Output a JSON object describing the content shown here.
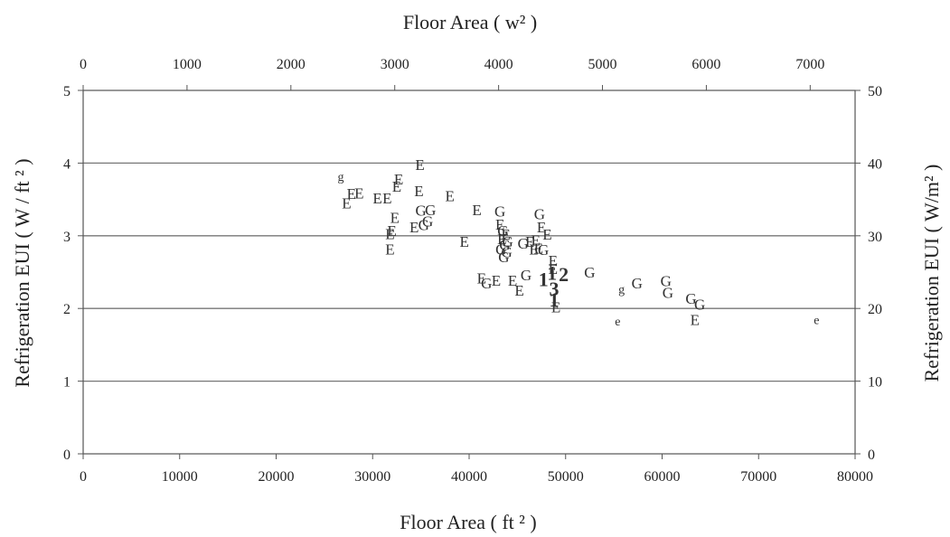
{
  "chart_data": {
    "type": "scatter",
    "xlabel_bottom": "Floor Area ( ft ² )",
    "xlabel_top": "Floor Area ( w² )",
    "ylabel_left": "Refrigeration EUI ( W / ft ² )",
    "ylabel_right": "Refrigeration EUI ( W/m² )",
    "xlim_bottom": [
      0,
      80000
    ],
    "ylim_left": [
      0,
      5
    ],
    "x_ticks_bottom": [
      "0",
      "10000",
      "20000",
      "30000",
      "40000",
      "50000",
      "60000",
      "70000",
      "80000"
    ],
    "y_ticks_left": [
      "0",
      "1",
      "2",
      "3",
      "4",
      "5"
    ],
    "x_ticks_top": [
      "0",
      "1000",
      "2000",
      "3000",
      "4000",
      "5000",
      "6000",
      "7000"
    ],
    "y_ticks_right": [
      "0",
      "10",
      "20",
      "30",
      "40",
      "50"
    ],
    "grid": "horizontal",
    "points": [
      {
        "x": 26700,
        "y": 3.83,
        "label": "g"
      },
      {
        "x": 27300,
        "y": 3.45,
        "label": "E"
      },
      {
        "x": 27800,
        "y": 3.58,
        "label": "E"
      },
      {
        "x": 28600,
        "y": 3.59,
        "label": "E"
      },
      {
        "x": 30500,
        "y": 3.52,
        "label": "E"
      },
      {
        "x": 31500,
        "y": 3.52,
        "label": "E"
      },
      {
        "x": 31800,
        "y": 3.03,
        "label": "E"
      },
      {
        "x": 31800,
        "y": 2.82,
        "label": "E"
      },
      {
        "x": 32000,
        "y": 3.07,
        "label": "E"
      },
      {
        "x": 32300,
        "y": 3.25,
        "label": "E"
      },
      {
        "x": 32500,
        "y": 3.68,
        "label": "E"
      },
      {
        "x": 32700,
        "y": 3.78,
        "label": "E"
      },
      {
        "x": 34300,
        "y": 3.12,
        "label": "E"
      },
      {
        "x": 34800,
        "y": 3.62,
        "label": "E"
      },
      {
        "x": 34900,
        "y": 3.98,
        "label": "E"
      },
      {
        "x": 35000,
        "y": 3.35,
        "label": "G"
      },
      {
        "x": 35300,
        "y": 3.15,
        "label": "G"
      },
      {
        "x": 35700,
        "y": 3.2,
        "label": "G"
      },
      {
        "x": 36000,
        "y": 3.36,
        "label": "G"
      },
      {
        "x": 38000,
        "y": 3.55,
        "label": "E"
      },
      {
        "x": 39500,
        "y": 2.92,
        "label": "E"
      },
      {
        "x": 40800,
        "y": 3.36,
        "label": "E"
      },
      {
        "x": 41300,
        "y": 2.42,
        "label": "E"
      },
      {
        "x": 41800,
        "y": 2.35,
        "label": "G"
      },
      {
        "x": 42800,
        "y": 2.39,
        "label": "E"
      },
      {
        "x": 43200,
        "y": 3.34,
        "label": "G"
      },
      {
        "x": 43200,
        "y": 3.16,
        "label": "E"
      },
      {
        "x": 43300,
        "y": 2.82,
        "label": "G"
      },
      {
        "x": 43400,
        "y": 2.96,
        "label": "E"
      },
      {
        "x": 43500,
        "y": 3.07,
        "label": "G"
      },
      {
        "x": 43600,
        "y": 2.71,
        "label": "G"
      },
      {
        "x": 43700,
        "y": 2.88,
        "label": "G"
      },
      {
        "x": 43800,
        "y": 3.02,
        "label": "E"
      },
      {
        "x": 43900,
        "y": 2.78,
        "label": "G"
      },
      {
        "x": 44000,
        "y": 2.92,
        "label": "G"
      },
      {
        "x": 44500,
        "y": 2.39,
        "label": "E"
      },
      {
        "x": 45200,
        "y": 2.25,
        "label": "E"
      },
      {
        "x": 45600,
        "y": 2.9,
        "label": "G"
      },
      {
        "x": 45900,
        "y": 2.46,
        "label": "G"
      },
      {
        "x": 46300,
        "y": 2.92,
        "label": "E"
      },
      {
        "x": 46700,
        "y": 2.82,
        "label": "E"
      },
      {
        "x": 46900,
        "y": 2.94,
        "label": "E"
      },
      {
        "x": 47200,
        "y": 2.83,
        "label": "E"
      },
      {
        "x": 47300,
        "y": 3.3,
        "label": "G"
      },
      {
        "x": 47500,
        "y": 3.12,
        "label": "E"
      },
      {
        "x": 47700,
        "y": 2.81,
        "label": "G"
      },
      {
        "x": 47700,
        "y": 2.38,
        "label": "1"
      },
      {
        "x": 48100,
        "y": 3.02,
        "label": "E"
      },
      {
        "x": 48600,
        "y": 2.47,
        "label": "1"
      },
      {
        "x": 48700,
        "y": 2.66,
        "label": "E"
      },
      {
        "x": 48700,
        "y": 2.55,
        "label": "E"
      },
      {
        "x": 48800,
        "y": 2.25,
        "label": "3"
      },
      {
        "x": 48800,
        "y": 2.1,
        "label": "1"
      },
      {
        "x": 49000,
        "y": 2.02,
        "label": "E"
      },
      {
        "x": 49800,
        "y": 2.45,
        "label": "2"
      },
      {
        "x": 52500,
        "y": 2.5,
        "label": "G"
      },
      {
        "x": 55400,
        "y": 1.84,
        "label": "e"
      },
      {
        "x": 55800,
        "y": 2.28,
        "label": "g"
      },
      {
        "x": 57400,
        "y": 2.35,
        "label": "G"
      },
      {
        "x": 60400,
        "y": 2.38,
        "label": "G"
      },
      {
        "x": 60600,
        "y": 2.22,
        "label": "G"
      },
      {
        "x": 63000,
        "y": 2.14,
        "label": "G"
      },
      {
        "x": 63400,
        "y": 1.85,
        "label": "E"
      },
      {
        "x": 63900,
        "y": 2.06,
        "label": "G"
      },
      {
        "x": 76000,
        "y": 1.86,
        "label": "e"
      }
    ]
  }
}
